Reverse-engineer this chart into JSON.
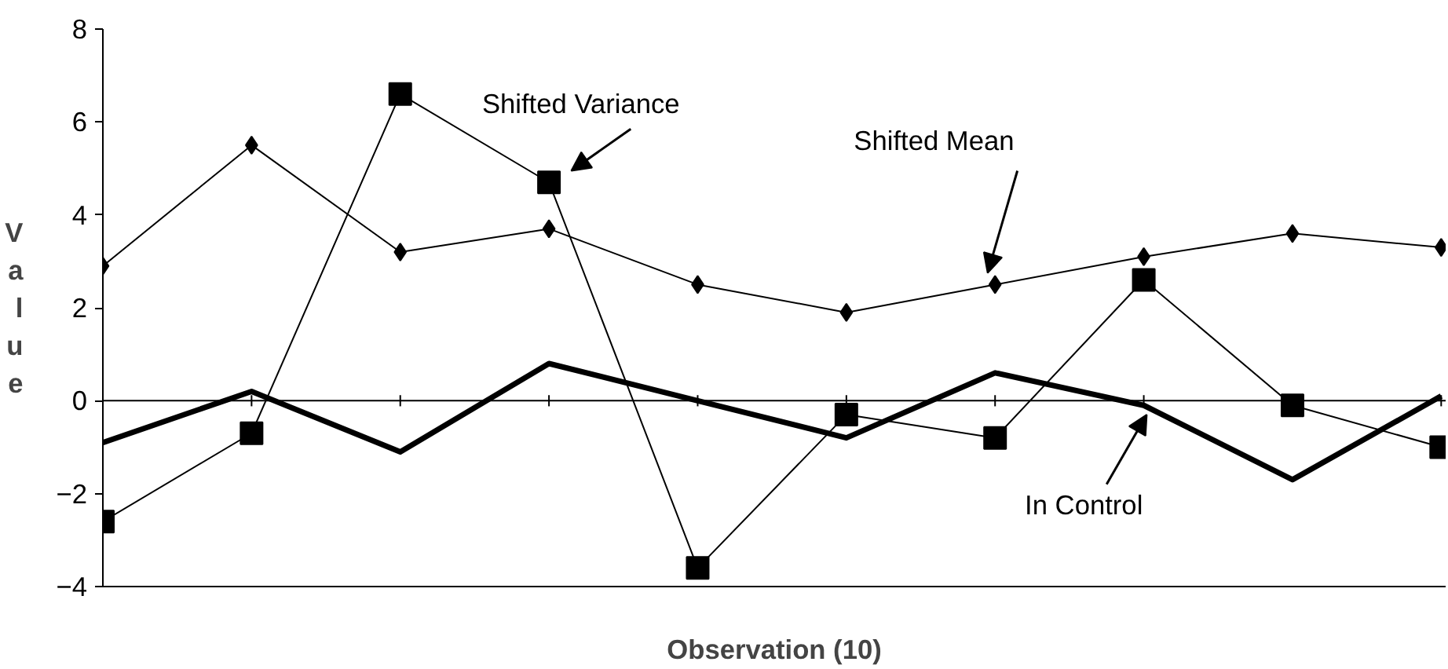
{
  "chart_data": {
    "type": "line",
    "xlabel": "Observation (10)",
    "ylabel": "Value",
    "categories": [
      null,
      null,
      null,
      null,
      null,
      null,
      null,
      null,
      null,
      null
    ],
    "series": [
      {
        "name": "Shifted Mean",
        "color": "#000000",
        "marker": "diamond",
        "values": [
          2.9,
          5.5,
          3.2,
          3.7,
          2.5,
          1.9,
          2.5,
          3.1,
          3.6,
          3.3
        ]
      },
      {
        "name": "Shifted Variance",
        "color": "#000000",
        "marker": "square",
        "values": [
          -2.6,
          -0.7,
          6.6,
          4.7,
          -3.6,
          -0.3,
          -0.8,
          2.6,
          -0.1,
          -1.0
        ]
      },
      {
        "name": "In Control",
        "color": "#000000",
        "marker": "none",
        "values": [
          -0.9,
          0.2,
          -1.1,
          0.8,
          0.0,
          -0.8,
          0.6,
          -0.1,
          -1.7,
          0.1
        ]
      }
    ],
    "ylim": [
      -4,
      8
    ],
    "yticks": [
      -4,
      -2,
      0,
      2,
      4,
      6,
      8
    ]
  }
}
